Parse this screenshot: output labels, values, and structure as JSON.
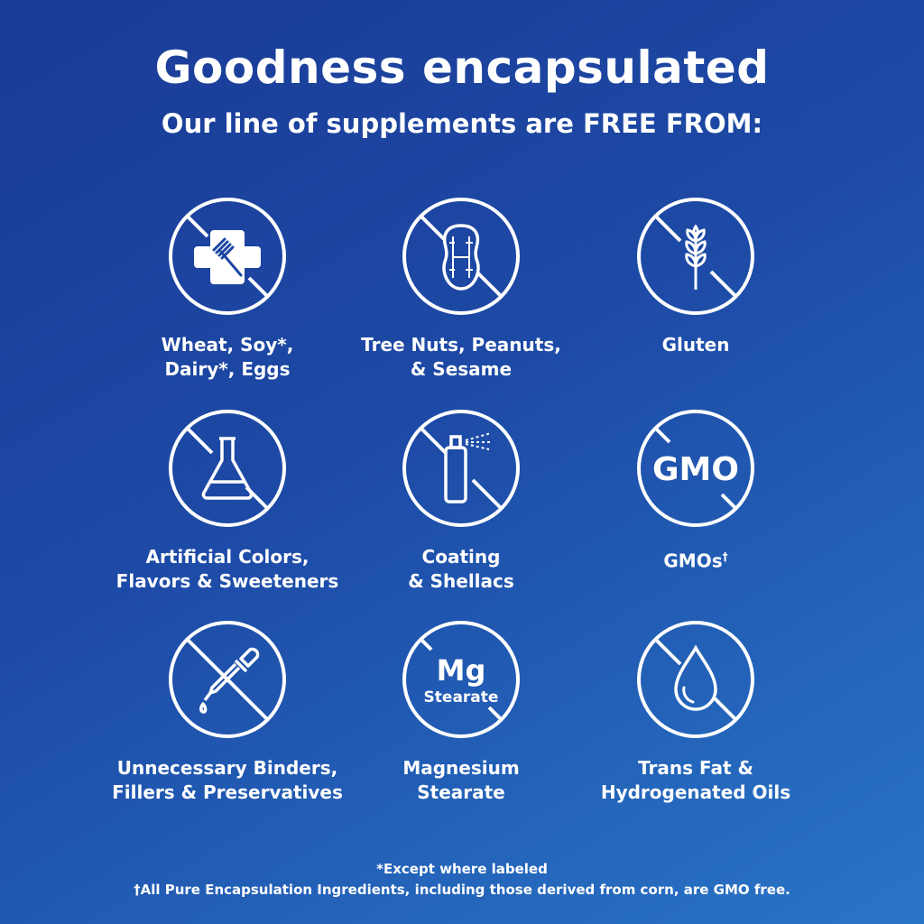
{
  "header": {
    "title": "Goodness encapsulated",
    "subtitle": "Our line of supplements are FREE FROM:"
  },
  "items": [
    {
      "icon": "wheat-soy-dairy-egg-icon",
      "line1": "Wheat, Soy*,",
      "line2": "Dairy*, Eggs"
    },
    {
      "icon": "peanut-icon",
      "line1": "Tree Nuts, Peanuts,",
      "line2": "& Sesame"
    },
    {
      "icon": "wheat-stalk-icon",
      "line1": "Gluten",
      "line2": ""
    },
    {
      "icon": "flask-icon",
      "line1": "Artificial Colors,",
      "line2": "Flavors & Sweeteners"
    },
    {
      "icon": "spray-bottle-icon",
      "line1": "Coating",
      "line2": "& Shellacs"
    },
    {
      "icon": "gmo-icon",
      "icon_text": "GMO",
      "line1": "GMOs",
      "sup": "†",
      "line2": ""
    },
    {
      "icon": "dropper-icon",
      "line1": "Unnecessary Binders,",
      "line2": "Fillers & Preservatives"
    },
    {
      "icon": "mg-stearate-icon",
      "icon_text": "Mg",
      "icon_subtext": "Stearate",
      "line1": "Magnesium",
      "line2": "Stearate"
    },
    {
      "icon": "oil-drop-icon",
      "line1": "Trans Fat &",
      "line2": "Hydrogenated Oils"
    }
  ],
  "footnotes": {
    "line1": "*Except where labeled",
    "line2": "†All Pure Encapsulation Ingredients, including those derived from corn, are GMO free."
  },
  "colors": {
    "bg_top": "#1a3b96",
    "bg_bottom": "#2a74c6",
    "foreground": "#ffffff"
  }
}
